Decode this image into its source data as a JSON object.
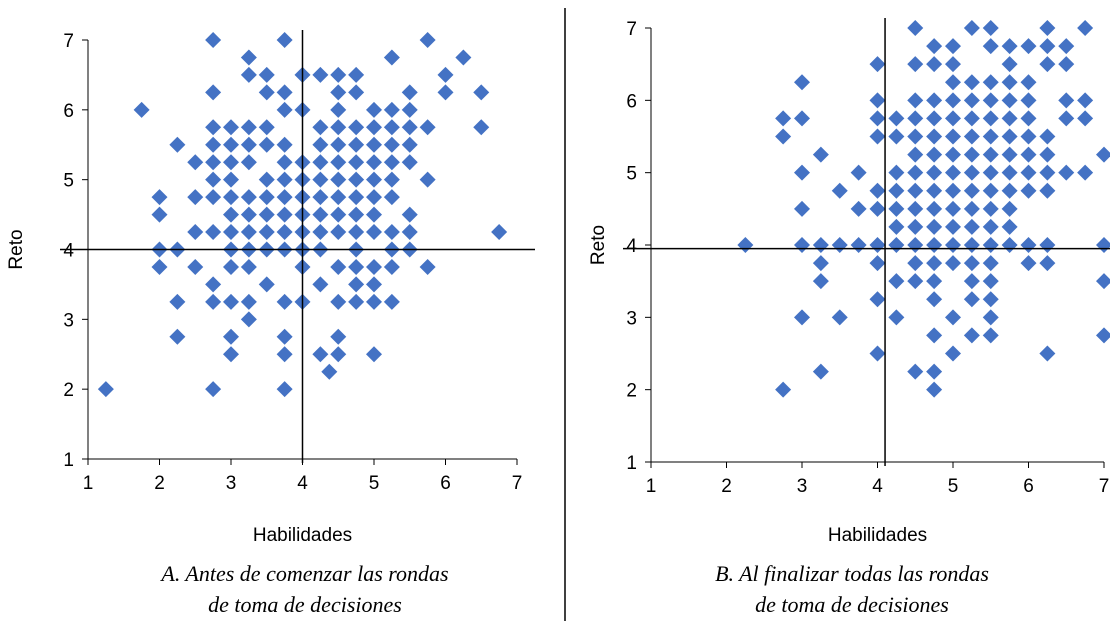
{
  "colors": {
    "marker": "#4472C4",
    "axis": "#000000",
    "divider": "#000000"
  },
  "chart_data": [
    {
      "type": "scatter",
      "xlabel": "Habilidades",
      "ylabel": "Reto",
      "xlim": [
        1,
        7
      ],
      "ylim": [
        1,
        7
      ],
      "xticks": [
        "1",
        "2",
        "3",
        "4",
        "5",
        "6",
        "7"
      ],
      "yticks": [
        "1",
        "2",
        "3",
        "4",
        "5",
        "6",
        "7"
      ],
      "reference_lines": {
        "x": 4,
        "y": 4
      },
      "caption_lines": [
        "A. Antes de comenzar las rondas",
        "de toma de decisiones"
      ],
      "points": [
        [
          1.25,
          2
        ],
        [
          1.75,
          6
        ],
        [
          2,
          4.75
        ],
        [
          2,
          4.5
        ],
        [
          2,
          4
        ],
        [
          2,
          3.75
        ],
        [
          2.25,
          5.5
        ],
        [
          2.25,
          4
        ],
        [
          2.25,
          3.25
        ],
        [
          2.25,
          2.75
        ],
        [
          2.5,
          5.25
        ],
        [
          2.5,
          4.75
        ],
        [
          2.5,
          4.25
        ],
        [
          2.5,
          3.75
        ],
        [
          2.75,
          7
        ],
        [
          2.75,
          6.25
        ],
        [
          2.75,
          5.75
        ],
        [
          2.75,
          5.5
        ],
        [
          2.75,
          5.25
        ],
        [
          2.75,
          5
        ],
        [
          2.75,
          4.75
        ],
        [
          2.75,
          4.25
        ],
        [
          2.75,
          3.5
        ],
        [
          2.75,
          3.25
        ],
        [
          2.75,
          2
        ],
        [
          3,
          5.75
        ],
        [
          3,
          5.5
        ],
        [
          3,
          5.25
        ],
        [
          3,
          5
        ],
        [
          3,
          4.75
        ],
        [
          3,
          4.5
        ],
        [
          3,
          4.25
        ],
        [
          3,
          4
        ],
        [
          3,
          3.75
        ],
        [
          3,
          3.25
        ],
        [
          3,
          2.75
        ],
        [
          3,
          2.5
        ],
        [
          3.25,
          6.75
        ],
        [
          3.25,
          6.5
        ],
        [
          3.25,
          5.75
        ],
        [
          3.25,
          5.5
        ],
        [
          3.25,
          5.25
        ],
        [
          3.25,
          4.75
        ],
        [
          3.25,
          4.5
        ],
        [
          3.25,
          4.25
        ],
        [
          3.25,
          4
        ],
        [
          3.25,
          3.75
        ],
        [
          3.25,
          3.25
        ],
        [
          3.25,
          3
        ],
        [
          3.5,
          6.5
        ],
        [
          3.5,
          6.25
        ],
        [
          3.5,
          5.75
        ],
        [
          3.5,
          5.5
        ],
        [
          3.5,
          5
        ],
        [
          3.5,
          4.75
        ],
        [
          3.5,
          4.5
        ],
        [
          3.5,
          4.25
        ],
        [
          3.5,
          4
        ],
        [
          3.5,
          3.5
        ],
        [
          3.75,
          7
        ],
        [
          3.75,
          6.25
        ],
        [
          3.75,
          6
        ],
        [
          3.75,
          5.5
        ],
        [
          3.75,
          5.25
        ],
        [
          3.75,
          5
        ],
        [
          3.75,
          4.75
        ],
        [
          3.75,
          4.5
        ],
        [
          3.75,
          4.25
        ],
        [
          3.75,
          4
        ],
        [
          3.75,
          3.25
        ],
        [
          3.75,
          2.75
        ],
        [
          3.75,
          2.5
        ],
        [
          3.75,
          2
        ],
        [
          4,
          6.5
        ],
        [
          4,
          6
        ],
        [
          4,
          5.25
        ],
        [
          4,
          5
        ],
        [
          4,
          4.75
        ],
        [
          4,
          4.5
        ],
        [
          4,
          4.25
        ],
        [
          4,
          4
        ],
        [
          4,
          3.75
        ],
        [
          4,
          3.25
        ],
        [
          4.25,
          6.5
        ],
        [
          4.25,
          5.75
        ],
        [
          4.25,
          5.5
        ],
        [
          4.25,
          5.25
        ],
        [
          4.25,
          5
        ],
        [
          4.25,
          4.75
        ],
        [
          4.25,
          4.5
        ],
        [
          4.25,
          4.25
        ],
        [
          4.25,
          4
        ],
        [
          4.25,
          3.5
        ],
        [
          4.25,
          2.5
        ],
        [
          4.5,
          6.5
        ],
        [
          4.5,
          6.25
        ],
        [
          4.5,
          6
        ],
        [
          4.5,
          5.75
        ],
        [
          4.5,
          5.5
        ],
        [
          4.5,
          5.25
        ],
        [
          4.5,
          5
        ],
        [
          4.5,
          4.75
        ],
        [
          4.5,
          4.5
        ],
        [
          4.5,
          4.25
        ],
        [
          4.5,
          3.75
        ],
        [
          4.5,
          3.25
        ],
        [
          4.5,
          2.75
        ],
        [
          4.5,
          2.5
        ],
        [
          4.375,
          2.25
        ],
        [
          4.75,
          6.5
        ],
        [
          4.75,
          6.25
        ],
        [
          4.75,
          5.75
        ],
        [
          4.75,
          5.5
        ],
        [
          4.75,
          5.25
        ],
        [
          4.75,
          5
        ],
        [
          4.75,
          4.75
        ],
        [
          4.75,
          4.5
        ],
        [
          4.75,
          4.25
        ],
        [
          4.75,
          4
        ],
        [
          4.75,
          3.75
        ],
        [
          4.75,
          3.5
        ],
        [
          4.75,
          3.25
        ],
        [
          5,
          6
        ],
        [
          5,
          5.75
        ],
        [
          5,
          5.5
        ],
        [
          5,
          5.25
        ],
        [
          5,
          5
        ],
        [
          5,
          4.75
        ],
        [
          5,
          4.5
        ],
        [
          5,
          4.25
        ],
        [
          5,
          3.75
        ],
        [
          5,
          3.5
        ],
        [
          5,
          3.25
        ],
        [
          5,
          2.5
        ],
        [
          5.25,
          6.75
        ],
        [
          5.25,
          6
        ],
        [
          5.25,
          5.75
        ],
        [
          5.25,
          5.5
        ],
        [
          5.25,
          5.25
        ],
        [
          5.25,
          5
        ],
        [
          5.25,
          4.75
        ],
        [
          5.25,
          4.25
        ],
        [
          5.25,
          4
        ],
        [
          5.25,
          3.75
        ],
        [
          5.25,
          3.25
        ],
        [
          5.5,
          6.25
        ],
        [
          5.5,
          6
        ],
        [
          5.5,
          5.75
        ],
        [
          5.5,
          5.5
        ],
        [
          5.5,
          5.25
        ],
        [
          5.5,
          4.5
        ],
        [
          5.5,
          4.25
        ],
        [
          5.5,
          4
        ],
        [
          5.75,
          7
        ],
        [
          5.75,
          5.75
        ],
        [
          5.75,
          5
        ],
        [
          5.75,
          3.75
        ],
        [
          6,
          6.5
        ],
        [
          6,
          6.25
        ],
        [
          6.25,
          6.75
        ],
        [
          6.5,
          6.25
        ],
        [
          6.5,
          5.75
        ],
        [
          6.75,
          4.25
        ]
      ]
    },
    {
      "type": "scatter",
      "xlabel": "Habilidades",
      "ylabel": "Reto",
      "xlim": [
        1,
        7
      ],
      "ylim": [
        1,
        7
      ],
      "xticks": [
        "1",
        "2",
        "3",
        "4",
        "5",
        "6",
        "7"
      ],
      "yticks": [
        "1",
        "2",
        "3",
        "4",
        "5",
        "6",
        "7"
      ],
      "reference_lines": {
        "x": 4.1,
        "y": 3.95
      },
      "caption_lines": [
        "B. Al finalizar todas las rondas",
        "de toma de decisiones"
      ],
      "points": [
        [
          2.25,
          4
        ],
        [
          2.75,
          5.75
        ],
        [
          2.75,
          5.5
        ],
        [
          2.75,
          2
        ],
        [
          3,
          6.25
        ],
        [
          3,
          5.75
        ],
        [
          3,
          5
        ],
        [
          3,
          4.5
        ],
        [
          3,
          4
        ],
        [
          3,
          3
        ],
        [
          3.25,
          5.25
        ],
        [
          3.25,
          4
        ],
        [
          3.25,
          3.75
        ],
        [
          3.25,
          3.5
        ],
        [
          3.25,
          2.25
        ],
        [
          3.5,
          4.75
        ],
        [
          3.5,
          4
        ],
        [
          3.5,
          3
        ],
        [
          3.75,
          5
        ],
        [
          3.75,
          4.5
        ],
        [
          3.75,
          4
        ],
        [
          4,
          6.5
        ],
        [
          4,
          6
        ],
        [
          4,
          5.75
        ],
        [
          4,
          5.5
        ],
        [
          4,
          4.75
        ],
        [
          4,
          4.5
        ],
        [
          4,
          4
        ],
        [
          4,
          3.75
        ],
        [
          4,
          3.25
        ],
        [
          4,
          2.5
        ],
        [
          4.25,
          5.75
        ],
        [
          4.25,
          5.5
        ],
        [
          4.25,
          5
        ],
        [
          4.25,
          4.75
        ],
        [
          4.25,
          4.5
        ],
        [
          4.25,
          4.25
        ],
        [
          4.25,
          4
        ],
        [
          4.25,
          3.5
        ],
        [
          4.25,
          3
        ],
        [
          4.5,
          7
        ],
        [
          4.5,
          6.5
        ],
        [
          4.5,
          6
        ],
        [
          4.5,
          5.75
        ],
        [
          4.5,
          5.5
        ],
        [
          4.5,
          5.25
        ],
        [
          4.5,
          5
        ],
        [
          4.5,
          4.75
        ],
        [
          4.5,
          4.5
        ],
        [
          4.5,
          4.25
        ],
        [
          4.5,
          4
        ],
        [
          4.5,
          3.75
        ],
        [
          4.5,
          3.5
        ],
        [
          4.5,
          2.25
        ],
        [
          4.75,
          6.75
        ],
        [
          4.75,
          6.5
        ],
        [
          4.75,
          6
        ],
        [
          4.75,
          5.75
        ],
        [
          4.75,
          5.5
        ],
        [
          4.75,
          5.25
        ],
        [
          4.75,
          5
        ],
        [
          4.75,
          4.75
        ],
        [
          4.75,
          4.5
        ],
        [
          4.75,
          4.25
        ],
        [
          4.75,
          4
        ],
        [
          4.75,
          3.75
        ],
        [
          4.75,
          3.5
        ],
        [
          4.75,
          3.25
        ],
        [
          4.75,
          2.75
        ],
        [
          4.75,
          2.25
        ],
        [
          4.75,
          2
        ],
        [
          5,
          6.75
        ],
        [
          5,
          6.5
        ],
        [
          5,
          6.25
        ],
        [
          5,
          6
        ],
        [
          5,
          5.75
        ],
        [
          5,
          5.5
        ],
        [
          5,
          5.25
        ],
        [
          5,
          5
        ],
        [
          5,
          4.75
        ],
        [
          5,
          4.5
        ],
        [
          5,
          4.25
        ],
        [
          5,
          4
        ],
        [
          5,
          3.75
        ],
        [
          5,
          3
        ],
        [
          5,
          2.5
        ],
        [
          5.25,
          7
        ],
        [
          5.25,
          6.25
        ],
        [
          5.25,
          6
        ],
        [
          5.25,
          5.75
        ],
        [
          5.25,
          5.5
        ],
        [
          5.25,
          5.25
        ],
        [
          5.25,
          5
        ],
        [
          5.25,
          4.75
        ],
        [
          5.25,
          4.5
        ],
        [
          5.25,
          4.25
        ],
        [
          5.25,
          4
        ],
        [
          5.25,
          3.75
        ],
        [
          5.25,
          3.5
        ],
        [
          5.25,
          3.25
        ],
        [
          5.25,
          2.75
        ],
        [
          5.5,
          7
        ],
        [
          5.5,
          6.75
        ],
        [
          5.5,
          6.25
        ],
        [
          5.5,
          6
        ],
        [
          5.5,
          5.75
        ],
        [
          5.5,
          5.5
        ],
        [
          5.5,
          5.25
        ],
        [
          5.5,
          5
        ],
        [
          5.5,
          4.75
        ],
        [
          5.5,
          4.5
        ],
        [
          5.5,
          4.25
        ],
        [
          5.5,
          4
        ],
        [
          5.5,
          3.75
        ],
        [
          5.5,
          3.5
        ],
        [
          5.5,
          3.25
        ],
        [
          5.5,
          3
        ],
        [
          5.5,
          2.75
        ],
        [
          5.75,
          6.75
        ],
        [
          5.75,
          6.5
        ],
        [
          5.75,
          6.25
        ],
        [
          5.75,
          6
        ],
        [
          5.75,
          5.75
        ],
        [
          5.75,
          5.5
        ],
        [
          5.75,
          5.25
        ],
        [
          5.75,
          5
        ],
        [
          5.75,
          4.75
        ],
        [
          5.75,
          4.5
        ],
        [
          5.75,
          4.25
        ],
        [
          5.75,
          4
        ],
        [
          6,
          6.75
        ],
        [
          6,
          6.25
        ],
        [
          6,
          6
        ],
        [
          6,
          5.75
        ],
        [
          6,
          5.5
        ],
        [
          6,
          5.25
        ],
        [
          6,
          5
        ],
        [
          6,
          4.75
        ],
        [
          6,
          4
        ],
        [
          6,
          3.75
        ],
        [
          6.25,
          7
        ],
        [
          6.25,
          6.75
        ],
        [
          6.25,
          6.5
        ],
        [
          6.25,
          5.5
        ],
        [
          6.25,
          5.25
        ],
        [
          6.25,
          5
        ],
        [
          6.25,
          4.75
        ],
        [
          6.25,
          4
        ],
        [
          6.25,
          3.75
        ],
        [
          6.25,
          2.5
        ],
        [
          6.5,
          6.75
        ],
        [
          6.5,
          6.5
        ],
        [
          6.5,
          6
        ],
        [
          6.5,
          5.75
        ],
        [
          6.5,
          5
        ],
        [
          6.75,
          7
        ],
        [
          6.75,
          6
        ],
        [
          6.75,
          5.75
        ],
        [
          6.75,
          5
        ],
        [
          7,
          5.25
        ],
        [
          7,
          4
        ],
        [
          7,
          3.5
        ],
        [
          7,
          2.75
        ]
      ]
    }
  ]
}
